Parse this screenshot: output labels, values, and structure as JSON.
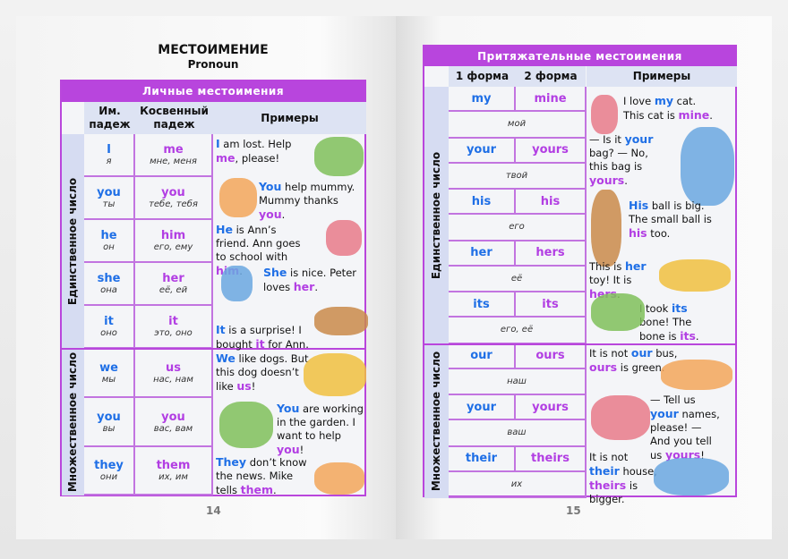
{
  "left": {
    "title": "МЕСТОИМЕНИЕ",
    "subtitle": "Pronoun",
    "page_number": "14",
    "table_title": "Личные местоимения",
    "headers": [
      "Им. падеж",
      "Косвенный падеж",
      "Примеры"
    ],
    "groups": [
      {
        "label": "Единственное число"
      },
      {
        "label": "Множественное число"
      }
    ],
    "rows": [
      {
        "nom": "I",
        "nom_tr": "я",
        "obj": "me",
        "obj_tr": "мне, меня"
      },
      {
        "nom": "you",
        "nom_tr": "ты",
        "obj": "you",
        "obj_tr": "тебе, тебя"
      },
      {
        "nom": "he",
        "nom_tr": "он",
        "obj": "him",
        "obj_tr": "его, ему"
      },
      {
        "nom": "she",
        "nom_tr": "она",
        "obj": "her",
        "obj_tr": "её, ей"
      },
      {
        "nom": "it",
        "nom_tr": "оно",
        "obj": "it",
        "obj_tr": "это, оно"
      },
      {
        "nom": "we",
        "nom_tr": "мы",
        "obj": "us",
        "obj_tr": "нас, нам"
      },
      {
        "nom": "you",
        "nom_tr": "вы",
        "obj": "you",
        "obj_tr": "вас, вам"
      },
      {
        "nom": "they",
        "nom_tr": "они",
        "obj": "them",
        "obj_tr": "их, им"
      }
    ],
    "examples": [
      [
        {
          "t": "I",
          "c": "b"
        },
        {
          "t": " am lost. Help "
        },
        {
          "t": "me",
          "c": "p"
        },
        {
          "t": ", please!"
        }
      ],
      [
        {
          "t": "You",
          "c": "b"
        },
        {
          "t": " help mummy. Mummy thanks "
        },
        {
          "t": "you",
          "c": "p"
        },
        {
          "t": "."
        }
      ],
      [
        {
          "t": "He",
          "c": "b"
        },
        {
          "t": " is Ann’s friend. Ann goes to school with "
        },
        {
          "t": "him",
          "c": "p"
        },
        {
          "t": "."
        }
      ],
      [
        {
          "t": "She",
          "c": "b"
        },
        {
          "t": " is nice. Peter loves "
        },
        {
          "t": "her",
          "c": "p"
        },
        {
          "t": "."
        }
      ],
      [
        {
          "t": "It",
          "c": "b"
        },
        {
          "t": " is a surprise! I bought "
        },
        {
          "t": "it",
          "c": "p"
        },
        {
          "t": " for Ann."
        }
      ],
      [
        {
          "t": "We",
          "c": "b"
        },
        {
          "t": " like dogs. But this dog doesn’t like "
        },
        {
          "t": "us",
          "c": "p"
        },
        {
          "t": "!"
        }
      ],
      [
        {
          "t": "You",
          "c": "b"
        },
        {
          "t": " are working in the garden. I want to help "
        },
        {
          "t": "you",
          "c": "p"
        },
        {
          "t": "!"
        }
      ],
      [
        {
          "t": "They",
          "c": "b"
        },
        {
          "t": " don’t know the news. Mike tells "
        },
        {
          "t": "them",
          "c": "p"
        },
        {
          "t": "."
        }
      ]
    ]
  },
  "right": {
    "page_number": "15",
    "table_title": "Притяжательные местоимения",
    "headers": [
      "1 форма",
      "2 форма",
      "Примеры"
    ],
    "groups": [
      {
        "label": "Единственное число"
      },
      {
        "label": "Множественное число"
      }
    ],
    "rows": [
      {
        "f1": "my",
        "f2": "mine",
        "tr": "мой"
      },
      {
        "f1": "your",
        "f2": "yours",
        "tr": "твой"
      },
      {
        "f1": "his",
        "f2": "his",
        "tr": "его"
      },
      {
        "f1": "her",
        "f2": "hers",
        "tr": "её"
      },
      {
        "f1": "its",
        "f2": "its",
        "tr": "его, её"
      },
      {
        "f1": "our",
        "f2": "ours",
        "tr": "наш"
      },
      {
        "f1": "your",
        "f2": "yours",
        "tr": "ваш"
      },
      {
        "f1": "their",
        "f2": "theirs",
        "tr": "их"
      }
    ],
    "examples": [
      [
        {
          "t": "I love "
        },
        {
          "t": "my",
          "c": "b"
        },
        {
          "t": " cat. This cat is "
        },
        {
          "t": "mine",
          "c": "p"
        },
        {
          "t": "."
        }
      ],
      [
        {
          "t": "— Is it "
        },
        {
          "t": "your",
          "c": "b"
        },
        {
          "t": " bag? — No, this bag is "
        },
        {
          "t": "yours",
          "c": "p"
        },
        {
          "t": "."
        }
      ],
      [
        {
          "t": "His",
          "c": "b"
        },
        {
          "t": " ball is big. The small ball is "
        },
        {
          "t": "his",
          "c": "p"
        },
        {
          "t": " too."
        }
      ],
      [
        {
          "t": "This is "
        },
        {
          "t": "her",
          "c": "b"
        },
        {
          "t": " toy! It is "
        },
        {
          "t": "hers",
          "c": "p"
        },
        {
          "t": "."
        }
      ],
      [
        {
          "t": "I took "
        },
        {
          "t": "its",
          "c": "b"
        },
        {
          "t": " bone! The bone is "
        },
        {
          "t": "its",
          "c": "p"
        },
        {
          "t": "."
        }
      ],
      [
        {
          "t": "It is not "
        },
        {
          "t": "our",
          "c": "b"
        },
        {
          "t": " bus, "
        },
        {
          "t": "ours",
          "c": "p"
        },
        {
          "t": " is green."
        }
      ],
      [
        {
          "t": "— Tell us "
        },
        {
          "t": "your",
          "c": "b"
        },
        {
          "t": " names, please! — And you tell us "
        },
        {
          "t": "yours",
          "c": "p"
        },
        {
          "t": "!"
        }
      ],
      [
        {
          "t": "It is not "
        },
        {
          "t": "their",
          "c": "b"
        },
        {
          "t": " house, "
        },
        {
          "t": "theirs",
          "c": "p"
        },
        {
          "t": " is bigger."
        }
      ]
    ]
  },
  "colors": {
    "accent_purple": "#b845dd",
    "pronoun_blue": "#1f6fe6",
    "pronoun_purple": "#b23ee3",
    "header_bg": "#dde3f3"
  }
}
